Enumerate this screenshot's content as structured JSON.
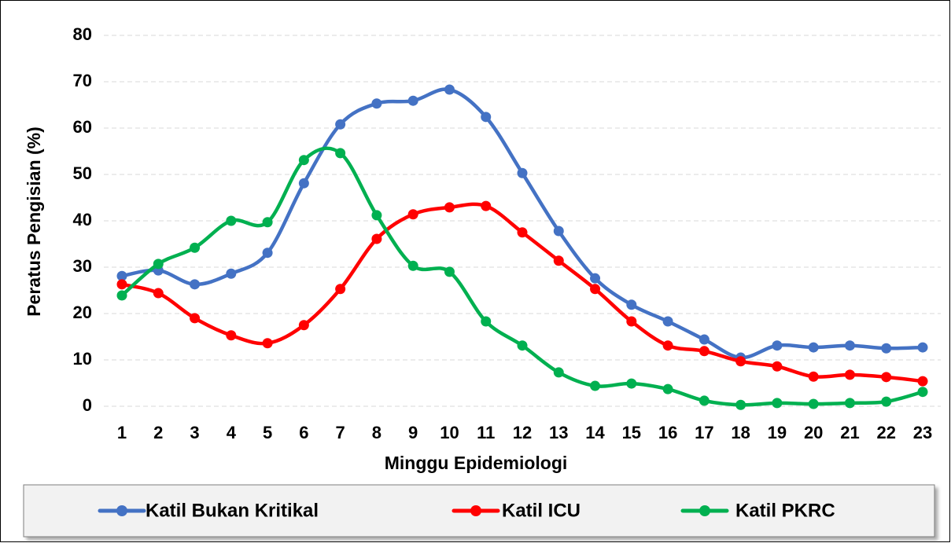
{
  "chart_data": {
    "type": "line",
    "x_label": "Minggu Epidemiologi",
    "y_label": "Peratus Pengisian (%)",
    "categories": [
      "1",
      "2",
      "3",
      "4",
      "5",
      "6",
      "7",
      "8",
      "9",
      "10",
      "11",
      "12",
      "13",
      "14",
      "15",
      "16",
      "17",
      "18",
      "19",
      "20",
      "21",
      "22",
      "23"
    ],
    "series": [
      {
        "name": "Katil Bukan Kritikal",
        "color": "#4472c4",
        "values": [
          28.1,
          29.3,
          26.3,
          28.6,
          33.1,
          48.1,
          60.8,
          65.3,
          65.9,
          68.3,
          62.4,
          50.3,
          37.8,
          27.6,
          21.9,
          18.3,
          14.4,
          10.5,
          13.1,
          12.7,
          13.1,
          12.5,
          12.7
        ]
      },
      {
        "name": "Katil ICU",
        "color": "#ff0000",
        "values": [
          26.3,
          24.4,
          19.0,
          15.3,
          13.6,
          17.5,
          25.3,
          36.1,
          41.4,
          42.9,
          43.2,
          37.5,
          31.4,
          25.3,
          18.3,
          13.1,
          11.9,
          9.7,
          8.6,
          6.4,
          6.8,
          6.3,
          5.4
        ]
      },
      {
        "name": "Katil PKRC",
        "color": "#00b050",
        "values": [
          23.9,
          30.7,
          34.2,
          40.0,
          39.7,
          53.1,
          54.6,
          41.2,
          30.3,
          29.0,
          18.3,
          13.1,
          7.3,
          4.4,
          4.9,
          3.7,
          1.2,
          0.3,
          0.7,
          0.5,
          0.7,
          1.0,
          3.1
        ]
      }
    ],
    "ylim": [
      0,
      80
    ],
    "yticks": [
      0,
      10,
      20,
      30,
      40,
      50,
      60,
      70,
      80
    ],
    "grid": true,
    "smooth": true,
    "legend": "bottom"
  }
}
